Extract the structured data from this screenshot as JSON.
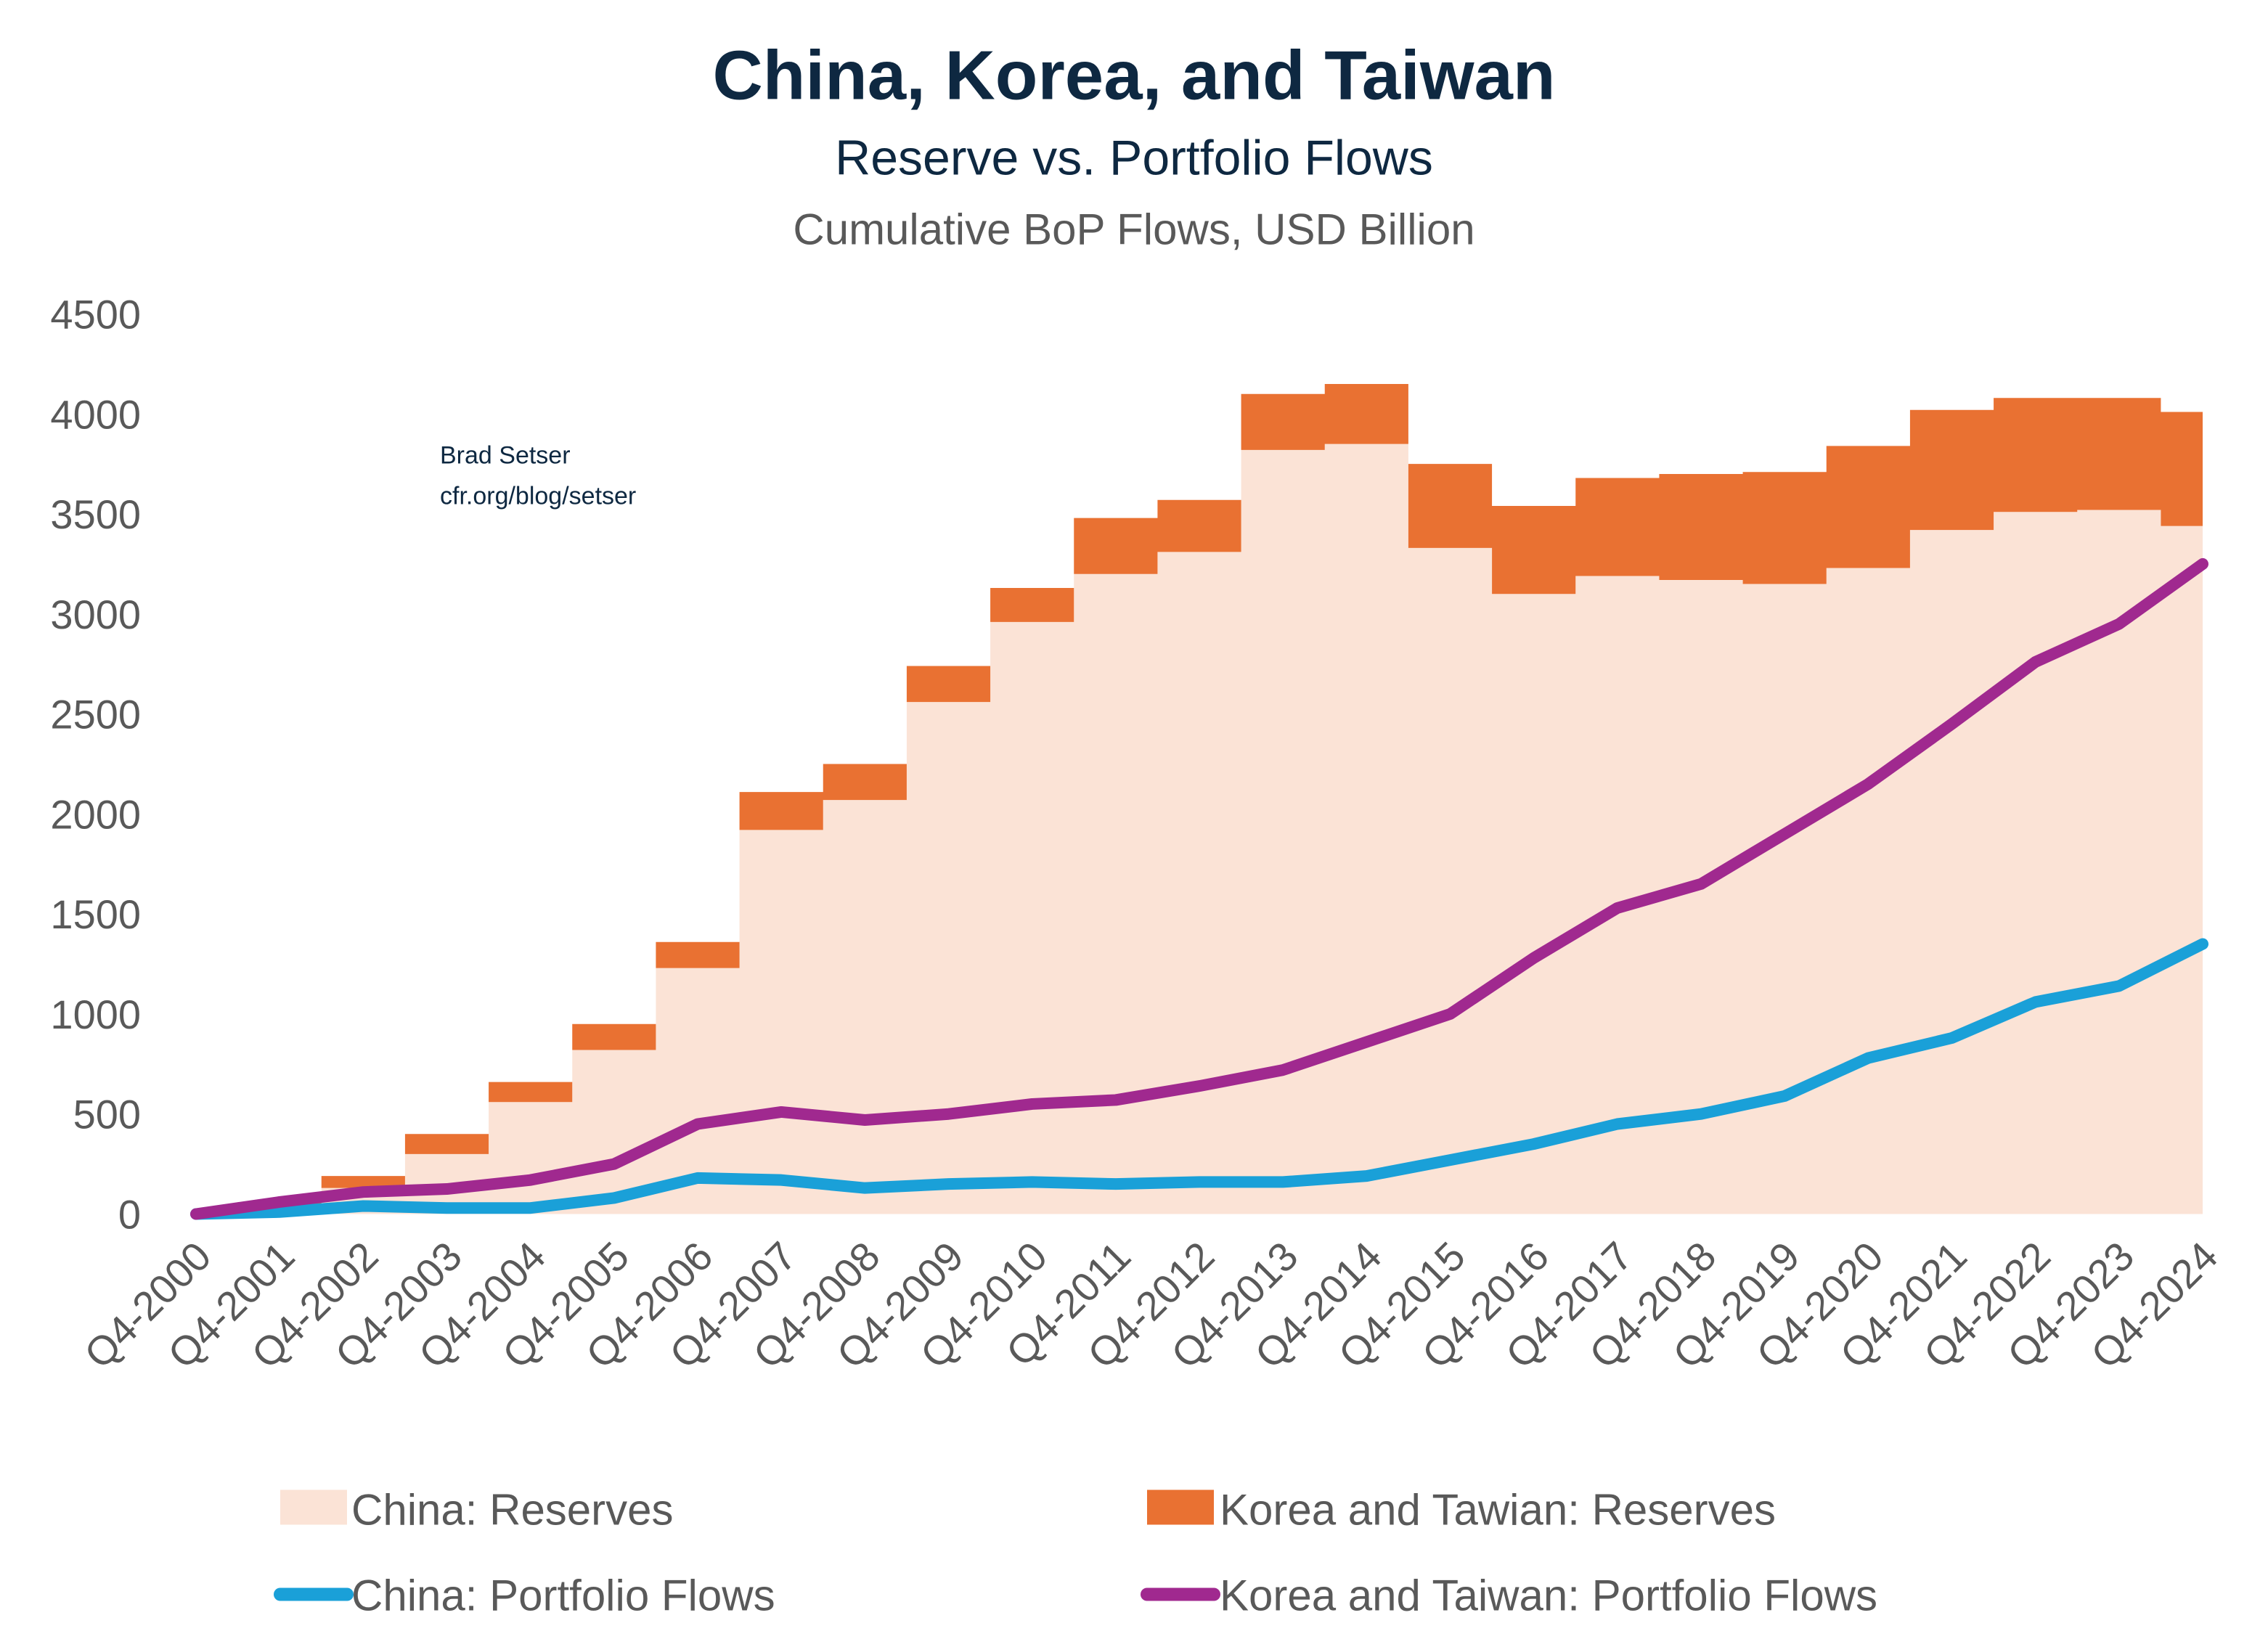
{
  "chart_data": {
    "type": "area",
    "title": "China, Korea, and Taiwan",
    "subtitle": "Reserve vs. Portfolio Flows",
    "subtitle2": "Cumulative BoP Flows, USD Billion",
    "annotation": [
      "Brad Setser",
      "cfr.org/blog/setser"
    ],
    "ylim": [
      0,
      4500
    ],
    "yticks": [
      "0",
      "500",
      "1000",
      "1500",
      "2000",
      "2500",
      "3000",
      "3500",
      "4000",
      "4500"
    ],
    "grid": false,
    "legend_position": "bottom",
    "categories": [
      "Q4-2000",
      "Q4-2001",
      "Q4-2002",
      "Q4-2003",
      "Q4-2004",
      "Q4-2005",
      "Q4-2006",
      "Q4-2007",
      "Q4-2008",
      "Q4-2009",
      "Q4-2010",
      "Q4-2011",
      "Q4-2012",
      "Q4-2013",
      "Q4-2014",
      "Q4-2015",
      "Q4-2016",
      "Q4-2017",
      "Q4-2018",
      "Q4-2019",
      "Q4-2020",
      "Q4-2021",
      "Q4-2022",
      "Q4-2023",
      "Q4-2024"
    ],
    "series": [
      {
        "name": "China: Reserves",
        "kind": "stacked-area",
        "color": "#FBE3D6",
        "values": [
          0,
          40,
          130,
          300,
          560,
          820,
          1230,
          1920,
          2070,
          2560,
          2960,
          3200,
          3310,
          3820,
          3850,
          3330,
          3100,
          3190,
          3170,
          3150,
          3230,
          3420,
          3510,
          3520,
          3440
        ]
      },
      {
        "name": "Korea and Tawian: Reserves",
        "kind": "stacked-area",
        "color": "#E97132",
        "values": [
          0,
          20,
          60,
          100,
          100,
          130,
          130,
          190,
          180,
          180,
          170,
          280,
          260,
          280,
          300,
          420,
          440,
          490,
          530,
          560,
          610,
          600,
          570,
          560,
          570
        ]
      },
      {
        "name": "China: Portfolio Flows",
        "kind": "line",
        "color": "#1AA0D8",
        "values": [
          0,
          10,
          40,
          30,
          30,
          80,
          180,
          170,
          130,
          150,
          160,
          150,
          160,
          160,
          190,
          270,
          350,
          450,
          500,
          590,
          780,
          880,
          1060,
          1140,
          1350
        ]
      },
      {
        "name": "Korea and Taiwan: Portfolio Flows",
        "kind": "line",
        "color": "#A0298F",
        "values": [
          0,
          60,
          110,
          125,
          170,
          250,
          450,
          510,
          470,
          500,
          550,
          570,
          640,
          720,
          860,
          1000,
          1280,
          1530,
          1650,
          1900,
          2150,
          2450,
          2760,
          2950,
          3250
        ]
      }
    ]
  }
}
